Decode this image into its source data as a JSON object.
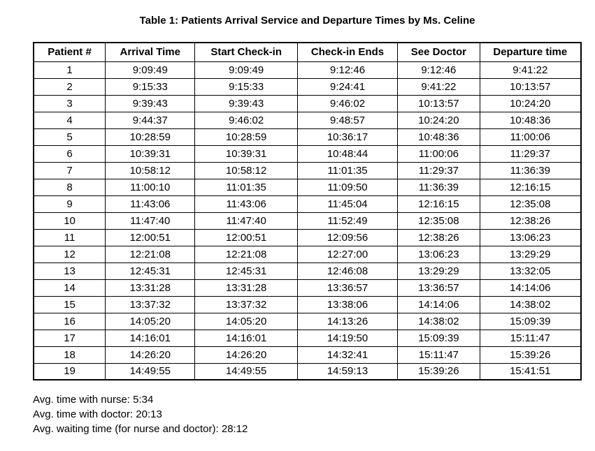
{
  "title": "Table 1: Patients Arrival Service and Departure Times by Ms. Celine",
  "table": {
    "headers": [
      "Patient #",
      "Arrival Time",
      "Start Check-in",
      "Check-in Ends",
      "See Doctor",
      "Departure time"
    ],
    "rows": [
      [
        "1",
        "9:09:49",
        "9:09:49",
        "9:12:46",
        "9:12:46",
        "9:41:22"
      ],
      [
        "2",
        "9:15:33",
        "9:15:33",
        "9:24:41",
        "9:41:22",
        "10:13:57"
      ],
      [
        "3",
        "9:39:43",
        "9:39:43",
        "9:46:02",
        "10:13:57",
        "10:24:20"
      ],
      [
        "4",
        "9:44:37",
        "9:46:02",
        "9:48:57",
        "10:24:20",
        "10:48:36"
      ],
      [
        "5",
        "10:28:59",
        "10:28:59",
        "10:36:17",
        "10:48:36",
        "11:00:06"
      ],
      [
        "6",
        "10:39:31",
        "10:39:31",
        "10:48:44",
        "11:00:06",
        "11:29:37"
      ],
      [
        "7",
        "10:58:12",
        "10:58:12",
        "11:01:35",
        "11:29:37",
        "11:36:39"
      ],
      [
        "8",
        "11:00:10",
        "11:01:35",
        "11:09:50",
        "11:36:39",
        "12:16:15"
      ],
      [
        "9",
        "11:43:06",
        "11:43:06",
        "11:45:04",
        "12:16:15",
        "12:35:08"
      ],
      [
        "10",
        "11:47:40",
        "11:47:40",
        "11:52:49",
        "12:35:08",
        "12:38:26"
      ],
      [
        "11",
        "12:00:51",
        "12:00:51",
        "12:09:56",
        "12:38:26",
        "13:06:23"
      ],
      [
        "12",
        "12:21:08",
        "12:21:08",
        "12:27:00",
        "13:06:23",
        "13:29:29"
      ],
      [
        "13",
        "12:45:31",
        "12:45:31",
        "12:46:08",
        "13:29:29",
        "13:32:05"
      ],
      [
        "14",
        "13:31:28",
        "13:31:28",
        "13:36:57",
        "13:36:57",
        "14:14:06"
      ],
      [
        "15",
        "13:37:32",
        "13:37:32",
        "13:38:06",
        "14:14:06",
        "14:38:02"
      ],
      [
        "16",
        "14:05:20",
        "14:05:20",
        "14:13:26",
        "14:38:02",
        "15:09:39"
      ],
      [
        "17",
        "14:16:01",
        "14:16:01",
        "14:19:50",
        "15:09:39",
        "15:11:47"
      ],
      [
        "18",
        "14:26:20",
        "14:26:20",
        "14:32:41",
        "15:11:47",
        "15:39:26"
      ],
      [
        "19",
        "14:49:55",
        "14:49:55",
        "14:59:13",
        "15:39:26",
        "15:41:51"
      ]
    ]
  },
  "footer": {
    "lines": [
      "Avg. time with nurse: 5:34",
      "Avg. time with doctor: 20:13",
      "Avg. waiting time (for nurse and doctor): 28:12"
    ]
  }
}
